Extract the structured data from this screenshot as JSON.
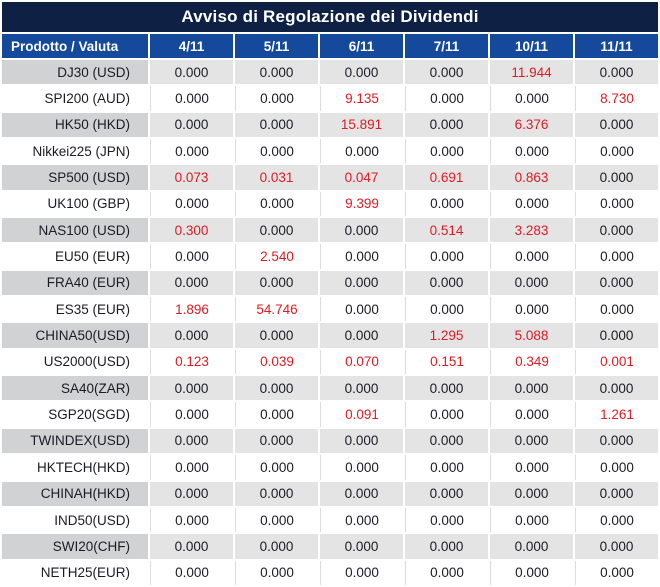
{
  "chart_data": {
    "type": "table",
    "title": "Avviso di Regolazione dei Dividendi",
    "columns": [
      "Prodotto / Valuta",
      "4/11",
      "5/11",
      "6/11",
      "7/11",
      "10/11",
      "11/11"
    ],
    "rows": [
      {
        "product": "DJ30 (USD)",
        "values": [
          "0.000",
          "0.000",
          "0.000",
          "0.000",
          "11.944",
          "0.000"
        ],
        "red": [
          4
        ]
      },
      {
        "product": "SPI200 (AUD)",
        "values": [
          "0.000",
          "0.000",
          "9.135",
          "0.000",
          "0.000",
          "8.730"
        ],
        "red": [
          2,
          5
        ]
      },
      {
        "product": "HK50 (HKD)",
        "values": [
          "0.000",
          "0.000",
          "15.891",
          "0.000",
          "6.376",
          "0.000"
        ],
        "red": [
          2,
          4
        ]
      },
      {
        "product": "Nikkei225 (JPN)",
        "values": [
          "0.000",
          "0.000",
          "0.000",
          "0.000",
          "0.000",
          "0.000"
        ],
        "red": []
      },
      {
        "product": "SP500 (USD)",
        "values": [
          "0.073",
          "0.031",
          "0.047",
          "0.691",
          "0.863",
          "0.000"
        ],
        "red": [
          0,
          1,
          2,
          3,
          4
        ]
      },
      {
        "product": "UK100 (GBP)",
        "values": [
          "0.000",
          "0.000",
          "9.399",
          "0.000",
          "0.000",
          "0.000"
        ],
        "red": [
          2
        ]
      },
      {
        "product": "NAS100 (USD)",
        "values": [
          "0.300",
          "0.000",
          "0.000",
          "0.514",
          "3.283",
          "0.000"
        ],
        "red": [
          0,
          3,
          4
        ]
      },
      {
        "product": "EU50 (EUR)",
        "values": [
          "0.000",
          "2.540",
          "0.000",
          "0.000",
          "0.000",
          "0.000"
        ],
        "red": [
          1
        ]
      },
      {
        "product": "FRA40 (EUR)",
        "values": [
          "0.000",
          "0.000",
          "0.000",
          "0.000",
          "0.000",
          "0.000"
        ],
        "red": []
      },
      {
        "product": "ES35 (EUR)",
        "values": [
          "1.896",
          "54.746",
          "0.000",
          "0.000",
          "0.000",
          "0.000"
        ],
        "red": [
          0,
          1
        ]
      },
      {
        "product": "CHINA50(USD)",
        "values": [
          "0.000",
          "0.000",
          "0.000",
          "1.295",
          "5.088",
          "0.000"
        ],
        "red": [
          3,
          4
        ]
      },
      {
        "product": "US2000(USD)",
        "values": [
          "0.123",
          "0.039",
          "0.070",
          "0.151",
          "0.349",
          "0.001"
        ],
        "red": [
          0,
          1,
          2,
          3,
          4,
          5
        ]
      },
      {
        "product": "SA40(ZAR)",
        "values": [
          "0.000",
          "0.000",
          "0.000",
          "0.000",
          "0.000",
          "0.000"
        ],
        "red": []
      },
      {
        "product": "SGP20(SGD)",
        "values": [
          "0.000",
          "0.000",
          "0.091",
          "0.000",
          "0.000",
          "1.261"
        ],
        "red": [
          2,
          5
        ]
      },
      {
        "product": "TWINDEX(USD)",
        "values": [
          "0.000",
          "0.000",
          "0.000",
          "0.000",
          "0.000",
          "0.000"
        ],
        "red": []
      },
      {
        "product": "HKTECH(HKD)",
        "values": [
          "0.000",
          "0.000",
          "0.000",
          "0.000",
          "0.000",
          "0.000"
        ],
        "red": []
      },
      {
        "product": "CHINAH(HKD)",
        "values": [
          "0.000",
          "0.000",
          "0.000",
          "0.000",
          "0.000",
          "0.000"
        ],
        "red": []
      },
      {
        "product": "IND50(USD)",
        "values": [
          "0.000",
          "0.000",
          "0.000",
          "0.000",
          "0.000",
          "0.000"
        ],
        "red": []
      },
      {
        "product": "SWI20(CHF)",
        "values": [
          "0.000",
          "0.000",
          "0.000",
          "0.000",
          "0.000",
          "0.000"
        ],
        "red": []
      },
      {
        "product": "NETH25(EUR)",
        "values": [
          "0.000",
          "0.000",
          "0.000",
          "0.000",
          "0.000",
          "0.000"
        ],
        "red": []
      }
    ]
  },
  "colors": {
    "title_bg": "#0e2145",
    "header_bg": "#14499b",
    "header_text": "#ffffff",
    "shaded_product_bg": "#d1d2d4",
    "shaded_value_bg": "#e4e4e5",
    "plain_bg": "#ffffff",
    "text": "#1b1b26",
    "highlight_red": "#dd1c24",
    "divider": "#dcdcdc"
  }
}
